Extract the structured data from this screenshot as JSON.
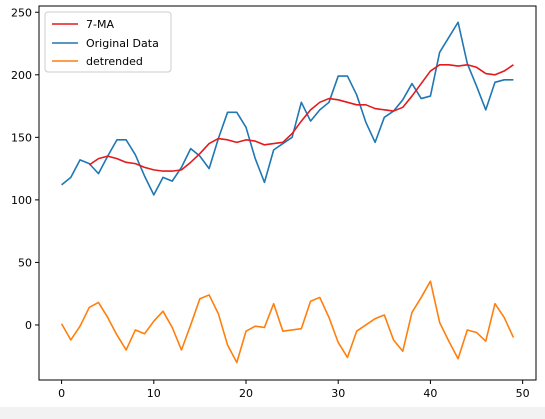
{
  "chart_data": {
    "type": "line",
    "title": "",
    "xlabel": "",
    "ylabel": "",
    "xlim": [
      -2.45,
      51.45
    ],
    "ylim": [
      -44,
      255
    ],
    "grid": false,
    "legend_position": "top-left",
    "x_ticks": [
      0,
      10,
      20,
      30,
      40,
      50
    ],
    "y_ticks": [
      0,
      50,
      100,
      150,
      200,
      250
    ],
    "x": [
      0,
      1,
      2,
      3,
      4,
      5,
      6,
      7,
      8,
      9,
      10,
      11,
      12,
      13,
      14,
      15,
      16,
      17,
      18,
      19,
      20,
      21,
      22,
      23,
      24,
      25,
      26,
      27,
      28,
      29,
      30,
      31,
      32,
      33,
      34,
      35,
      36,
      37,
      38,
      39,
      40,
      41,
      42,
      43,
      44,
      45,
      46,
      47,
      48,
      49
    ],
    "series": [
      {
        "name": "7-MA",
        "color": "#e41a1c",
        "values": [
          null,
          null,
          null,
          128,
          133,
          135,
          133,
          130,
          129,
          126,
          124,
          123,
          123,
          124,
          130,
          137,
          145,
          149,
          148,
          146,
          148,
          147,
          144,
          145,
          146,
          153,
          163,
          172,
          178,
          181,
          180,
          178,
          176,
          176,
          173,
          172,
          171,
          174,
          183,
          193,
          203,
          208,
          208,
          207,
          208,
          206,
          201,
          200,
          203,
          208
        ]
      },
      {
        "name": "Original Data",
        "color": "#1f77b4",
        "values": [
          112,
          118,
          132,
          129,
          121,
          135,
          148,
          148,
          136,
          119,
          104,
          118,
          115,
          126,
          141,
          135,
          125,
          149,
          170,
          170,
          158,
          133,
          114,
          140,
          145,
          150,
          178,
          163,
          172,
          178,
          199,
          199,
          184,
          162,
          146,
          166,
          171,
          180,
          193,
          181,
          183,
          218,
          230,
          242,
          209,
          191,
          172,
          194,
          196,
          196
        ]
      },
      {
        "name": "detrended",
        "color": "#ff7f0e",
        "values": [
          1,
          -12,
          -1,
          14,
          18,
          6,
          -8,
          -20,
          -4,
          -7,
          3,
          11,
          -2,
          -20,
          0,
          21,
          24,
          9,
          -16,
          -30,
          -5,
          -1,
          -2,
          17,
          -5,
          -4,
          -3,
          19,
          22,
          6,
          -14,
          -26,
          -5,
          0,
          5,
          8,
          -12,
          -21,
          10,
          22,
          35,
          2,
          -13,
          -27,
          -4,
          -6,
          -13,
          17,
          6,
          -10
        ]
      }
    ]
  }
}
